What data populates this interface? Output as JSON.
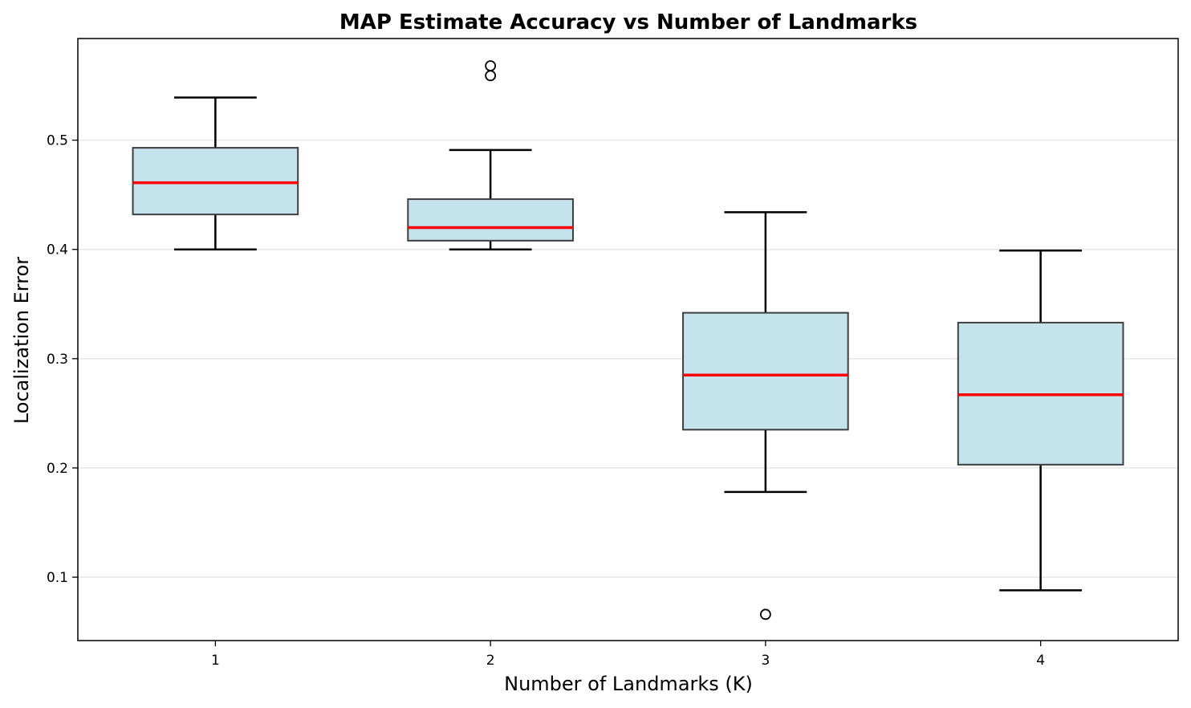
{
  "chart_data": {
    "type": "box",
    "title": "MAP Estimate Accuracy vs Number of Landmarks",
    "xlabel": "Number of Landmarks (K)",
    "ylabel": "Localization Error",
    "categories": [
      "1",
      "2",
      "3",
      "4"
    ],
    "yticks": [
      "0.1",
      "0.2",
      "0.3",
      "0.4",
      "0.5"
    ],
    "ylim": [
      0.042,
      0.593
    ],
    "grid": "horizontal",
    "boxes": [
      {
        "category": "1",
        "whisker_low": 0.4,
        "q1": 0.432,
        "median": 0.461,
        "q3": 0.493,
        "whisker_high": 0.539,
        "outliers": []
      },
      {
        "category": "2",
        "whisker_low": 0.4,
        "q1": 0.408,
        "median": 0.42,
        "q3": 0.446,
        "whisker_high": 0.491,
        "outliers": [
          0.559,
          0.568
        ]
      },
      {
        "category": "3",
        "whisker_low": 0.178,
        "q1": 0.235,
        "median": 0.285,
        "q3": 0.342,
        "whisker_high": 0.434,
        "outliers": [
          0.066
        ]
      },
      {
        "category": "4",
        "whisker_low": 0.088,
        "q1": 0.203,
        "median": 0.267,
        "q3": 0.333,
        "whisker_high": 0.399,
        "outliers": []
      }
    ],
    "colors": {
      "box_fill": "#c5e3ec",
      "box_edge": "#3f3f3f",
      "median": "#ff0000",
      "whisker": "#000000",
      "grid": "#e6e6e6"
    }
  }
}
